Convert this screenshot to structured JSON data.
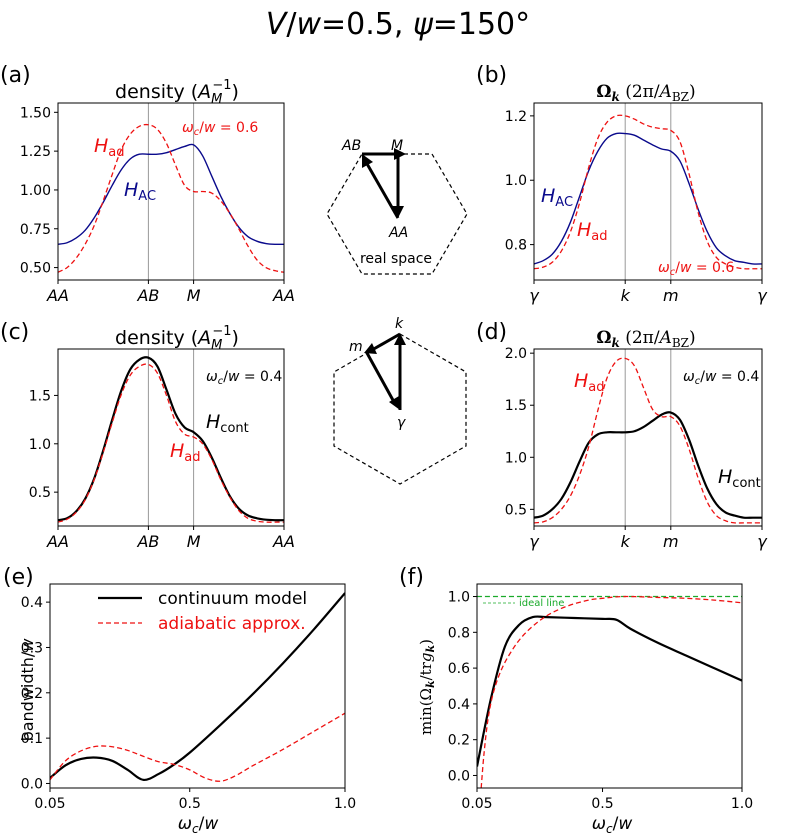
{
  "figure": {
    "title": "V/w=0.5, ψ=150°",
    "title_parts": [
      "V",
      "/",
      "w",
      "=0.5, ",
      "ψ",
      "=150°"
    ]
  },
  "colors": {
    "black": "#000000",
    "red": "#ee1111",
    "navy": "#0a0a8c",
    "green": "#1aaa2a",
    "grid": "#999999"
  },
  "schematics": {
    "real_space": {
      "labels": [
        "AB",
        "M",
        "AA"
      ],
      "caption": "real space"
    },
    "k_space": {
      "labels": [
        "k",
        "m",
        "γ"
      ]
    }
  },
  "chart_data": [
    {
      "id": "a",
      "panel_label": "(a)",
      "type": "line",
      "title": "density (A_M^-1)",
      "title_parts": [
        "density (",
        "A",
        "M",
        "−1",
        ")"
      ],
      "xlabel": "",
      "ylabel": "",
      "x_ticks": [
        "AA",
        "AB",
        "M",
        "AA"
      ],
      "x_tick_positions": [
        0,
        1,
        1.5,
        2.5
      ],
      "vlines": [
        1,
        1.5
      ],
      "xlim": [
        0,
        2.5
      ],
      "ylim": [
        0.42,
        1.56
      ],
      "y_ticks": [
        0.5,
        0.75,
        1.0,
        1.25,
        1.5
      ],
      "y_tick_labels": [
        "0.50",
        "0.75",
        "1.00",
        "1.25",
        "1.50"
      ],
      "annotation": "ωc/w = 0.6",
      "annotation_parts": [
        "ω",
        "c",
        "/",
        "w",
        " = 0.6"
      ],
      "series": [
        {
          "name": "H_AC",
          "label_main": "H",
          "label_sub": "AC",
          "style": "solid",
          "color": "#0a0a8c",
          "x": [
            0,
            0.1,
            0.2,
            0.3,
            0.4,
            0.5,
            0.6,
            0.7,
            0.8,
            0.9,
            1.0,
            1.1,
            1.2,
            1.3,
            1.4,
            1.5,
            1.6,
            1.7,
            1.8,
            1.9,
            2.0,
            2.1,
            2.2,
            2.3,
            2.4,
            2.5
          ],
          "y": [
            0.65,
            0.66,
            0.69,
            0.74,
            0.82,
            0.92,
            1.03,
            1.13,
            1.2,
            1.23,
            1.23,
            1.23,
            1.24,
            1.26,
            1.28,
            1.29,
            1.22,
            1.09,
            0.96,
            0.85,
            0.76,
            0.7,
            0.67,
            0.655,
            0.65,
            0.65
          ]
        },
        {
          "name": "H_ad",
          "label_main": "H",
          "label_sub": "ad",
          "style": "dashed",
          "color": "#ee1111",
          "x": [
            0,
            0.1,
            0.2,
            0.3,
            0.4,
            0.5,
            0.6,
            0.7,
            0.8,
            0.9,
            1.0,
            1.1,
            1.2,
            1.3,
            1.4,
            1.5,
            1.6,
            1.7,
            1.8,
            1.9,
            2.0,
            2.1,
            2.2,
            2.3,
            2.4,
            2.5
          ],
          "y": [
            0.47,
            0.5,
            0.56,
            0.65,
            0.77,
            0.93,
            1.1,
            1.26,
            1.36,
            1.41,
            1.42,
            1.39,
            1.3,
            1.16,
            1.03,
            0.99,
            0.99,
            0.98,
            0.93,
            0.85,
            0.75,
            0.64,
            0.55,
            0.5,
            0.48,
            0.47
          ]
        }
      ]
    },
    {
      "id": "b",
      "panel_label": "(b)",
      "type": "line",
      "title": "Ωk (2π/ABZ)",
      "title_parts": [
        "Ω",
        "k",
        "  (2π/",
        "A",
        "BZ",
        ")"
      ],
      "xlabel": "",
      "ylabel": "",
      "x_ticks": [
        "γ",
        "k",
        "m",
        "γ"
      ],
      "x_tick_positions": [
        0,
        1,
        1.5,
        2.5
      ],
      "vlines": [
        1,
        1.5
      ],
      "xlim": [
        0,
        2.5
      ],
      "ylim": [
        0.69,
        1.24
      ],
      "y_ticks": [
        0.8,
        1.0,
        1.2
      ],
      "y_tick_labels": [
        "0.8",
        "1.0",
        "1.2"
      ],
      "annotation": "ωc/w = 0.6",
      "annotation_parts": [
        "ω",
        "c",
        "/",
        "w",
        " = 0.6"
      ],
      "series": [
        {
          "name": "H_AC",
          "label_main": "H",
          "label_sub": "AC",
          "style": "solid",
          "color": "#0a0a8c",
          "x": [
            0,
            0.1,
            0.2,
            0.3,
            0.4,
            0.5,
            0.6,
            0.7,
            0.8,
            0.9,
            1.0,
            1.1,
            1.2,
            1.3,
            1.4,
            1.5,
            1.6,
            1.7,
            1.8,
            1.9,
            2.0,
            2.1,
            2.2,
            2.3,
            2.4,
            2.5
          ],
          "y": [
            0.74,
            0.75,
            0.77,
            0.81,
            0.87,
            0.95,
            1.03,
            1.09,
            1.13,
            1.145,
            1.145,
            1.14,
            1.125,
            1.11,
            1.097,
            1.09,
            1.06,
            0.99,
            0.91,
            0.84,
            0.79,
            0.765,
            0.75,
            0.745,
            0.74,
            0.74
          ]
        },
        {
          "name": "H_ad",
          "label_main": "H",
          "label_sub": "ad",
          "style": "dashed",
          "color": "#ee1111",
          "x": [
            0,
            0.1,
            0.2,
            0.3,
            0.4,
            0.5,
            0.6,
            0.7,
            0.8,
            0.9,
            1.0,
            1.1,
            1.2,
            1.3,
            1.4,
            1.5,
            1.6,
            1.7,
            1.8,
            1.9,
            2.0,
            2.1,
            2.2,
            2.3,
            2.4,
            2.5
          ],
          "y": [
            0.725,
            0.73,
            0.745,
            0.78,
            0.84,
            0.93,
            1.04,
            1.13,
            1.18,
            1.2,
            1.2,
            1.19,
            1.175,
            1.165,
            1.16,
            1.155,
            1.12,
            1.02,
            0.9,
            0.81,
            0.76,
            0.74,
            0.73,
            0.725,
            0.725,
            0.725
          ]
        }
      ]
    },
    {
      "id": "c",
      "panel_label": "(c)",
      "type": "line",
      "title": "density (A_M^-1)",
      "title_parts": [
        "density (",
        "A",
        "M",
        "−1",
        ")"
      ],
      "xlabel": "",
      "ylabel": "",
      "x_ticks": [
        "AA",
        "AB",
        "M",
        "AA"
      ],
      "x_tick_positions": [
        0,
        1,
        1.5,
        2.5
      ],
      "vlines": [
        1,
        1.5
      ],
      "xlim": [
        0,
        2.5
      ],
      "ylim": [
        0.15,
        1.98
      ],
      "y_ticks": [
        0.5,
        1.0,
        1.5
      ],
      "y_tick_labels": [
        "0.5",
        "1.0",
        "1.5"
      ],
      "annotation": "ωc/w = 0.4",
      "annotation_parts": [
        "ω",
        "c",
        "/",
        "w",
        " = 0.4"
      ],
      "series": [
        {
          "name": "H_cont",
          "label_main": "H",
          "label_sub": "cont",
          "style": "solid",
          "color": "#000000",
          "x": [
            0,
            0.1,
            0.2,
            0.3,
            0.4,
            0.5,
            0.6,
            0.7,
            0.8,
            0.9,
            1.0,
            1.1,
            1.2,
            1.3,
            1.4,
            1.5,
            1.6,
            1.7,
            1.8,
            1.9,
            2.0,
            2.1,
            2.2,
            2.3,
            2.4,
            2.5
          ],
          "y": [
            0.21,
            0.23,
            0.3,
            0.43,
            0.64,
            0.93,
            1.25,
            1.55,
            1.77,
            1.87,
            1.89,
            1.8,
            1.56,
            1.31,
            1.17,
            1.12,
            1.03,
            0.86,
            0.65,
            0.46,
            0.33,
            0.26,
            0.23,
            0.215,
            0.21,
            0.21
          ]
        },
        {
          "name": "H_ad",
          "label_main": "H",
          "label_sub": "ad",
          "style": "dashed",
          "color": "#ee1111",
          "x": [
            0,
            0.1,
            0.2,
            0.3,
            0.4,
            0.5,
            0.6,
            0.7,
            0.8,
            0.9,
            1.0,
            1.1,
            1.2,
            1.3,
            1.4,
            1.5,
            1.6,
            1.7,
            1.8,
            1.9,
            2.0,
            2.1,
            2.2,
            2.3,
            2.4,
            2.5
          ],
          "y": [
            0.19,
            0.22,
            0.29,
            0.42,
            0.63,
            0.91,
            1.22,
            1.51,
            1.71,
            1.8,
            1.82,
            1.73,
            1.5,
            1.23,
            1.1,
            1.07,
            1.0,
            0.84,
            0.63,
            0.45,
            0.31,
            0.23,
            0.2,
            0.19,
            0.19,
            0.19
          ]
        }
      ]
    },
    {
      "id": "d",
      "panel_label": "(d)",
      "type": "line",
      "title": "Ωk (2π/ABZ)",
      "title_parts": [
        "Ω",
        "k",
        "  (2π/",
        "A",
        "BZ",
        ")"
      ],
      "xlabel": "",
      "ylabel": "",
      "x_ticks": [
        "γ",
        "k",
        "m",
        "γ"
      ],
      "x_tick_positions": [
        0,
        1,
        1.5,
        2.5
      ],
      "vlines": [
        1,
        1.5
      ],
      "xlim": [
        0,
        2.5
      ],
      "ylim": [
        0.34,
        2.04
      ],
      "y_ticks": [
        0.5,
        1.0,
        1.5,
        2.0
      ],
      "y_tick_labels": [
        "0.5",
        "1.0",
        "1.5",
        "2.0"
      ],
      "annotation": "ωc/w = 0.4",
      "annotation_parts": [
        "ω",
        "c",
        "/",
        "w",
        " = 0.4"
      ],
      "series": [
        {
          "name": "H_cont",
          "label_main": "H",
          "label_sub": "cont",
          "style": "solid",
          "color": "#000000",
          "x": [
            0,
            0.1,
            0.2,
            0.3,
            0.4,
            0.5,
            0.6,
            0.7,
            0.8,
            0.9,
            1.0,
            1.1,
            1.2,
            1.3,
            1.4,
            1.5,
            1.6,
            1.7,
            1.8,
            1.9,
            2.0,
            2.1,
            2.2,
            2.3,
            2.4,
            2.5
          ],
          "y": [
            0.42,
            0.44,
            0.5,
            0.6,
            0.76,
            0.96,
            1.14,
            1.22,
            1.24,
            1.24,
            1.24,
            1.25,
            1.29,
            1.35,
            1.41,
            1.43,
            1.36,
            1.17,
            0.92,
            0.7,
            0.55,
            0.47,
            0.44,
            0.42,
            0.42,
            0.42
          ]
        },
        {
          "name": "H_ad",
          "label_main": "H",
          "label_sub": "ad",
          "style": "dashed",
          "color": "#ee1111",
          "x": [
            0,
            0.1,
            0.2,
            0.3,
            0.4,
            0.5,
            0.6,
            0.7,
            0.8,
            0.9,
            1.0,
            1.1,
            1.2,
            1.3,
            1.4,
            1.5,
            1.6,
            1.7,
            1.8,
            1.9,
            2.0,
            2.1,
            2.2,
            2.3,
            2.4,
            2.5
          ],
          "y": [
            0.37,
            0.38,
            0.42,
            0.5,
            0.63,
            0.83,
            1.1,
            1.45,
            1.76,
            1.92,
            1.95,
            1.88,
            1.67,
            1.46,
            1.39,
            1.39,
            1.3,
            1.08,
            0.8,
            0.57,
            0.44,
            0.39,
            0.37,
            0.37,
            0.37,
            0.37
          ]
        }
      ]
    },
    {
      "id": "e",
      "panel_label": "(e)",
      "type": "line",
      "title": "",
      "xlabel": "ωc/w",
      "xlabel_parts": [
        "ω",
        "c",
        "/",
        "w"
      ],
      "ylabel": "bandwidth/w",
      "ylabel_parts": [
        "bandwidth/",
        "w"
      ],
      "xlim": [
        0.05,
        1.0
      ],
      "ylim": [
        -0.01,
        0.44
      ],
      "x_ticks": [
        0.05,
        0.5,
        1.0
      ],
      "x_tick_labels": [
        "0.05",
        "0.5",
        "1.0"
      ],
      "y_ticks": [
        0.0,
        0.1,
        0.2,
        0.3,
        0.4
      ],
      "y_tick_labels": [
        "0.0",
        "0.1",
        "0.2",
        "0.3",
        "0.4"
      ],
      "legend": [
        "continuum model",
        "adiabatic approx."
      ],
      "legend_position": "top-left",
      "series": [
        {
          "name": "continuum model",
          "style": "solid",
          "color": "#000000",
          "x": [
            0.05,
            0.1,
            0.15,
            0.2,
            0.25,
            0.3,
            0.35,
            0.4,
            0.45,
            0.5,
            0.6,
            0.7,
            0.8,
            0.9,
            1.0
          ],
          "y": [
            0.012,
            0.04,
            0.054,
            0.057,
            0.05,
            0.03,
            0.008,
            0.021,
            0.042,
            0.068,
            0.13,
            0.195,
            0.265,
            0.34,
            0.42
          ]
        },
        {
          "name": "adiabatic approx.",
          "style": "dashed",
          "color": "#ee1111",
          "x": [
            0.05,
            0.1,
            0.15,
            0.2,
            0.25,
            0.3,
            0.35,
            0.4,
            0.45,
            0.5,
            0.55,
            0.6,
            0.65,
            0.7,
            0.8,
            0.9,
            1.0
          ],
          "y": [
            0.008,
            0.05,
            0.072,
            0.082,
            0.081,
            0.073,
            0.06,
            0.048,
            0.042,
            0.03,
            0.012,
            0.005,
            0.018,
            0.038,
            0.075,
            0.115,
            0.155
          ]
        }
      ]
    },
    {
      "id": "f",
      "panel_label": "(f)",
      "type": "line",
      "title": "",
      "xlabel": "ωc/w",
      "xlabel_parts": [
        "ω",
        "c",
        "/",
        "w"
      ],
      "ylabel": "min(Ωk/trgk)",
      "ylabel_parts": [
        "min(Ω",
        "k",
        "/tr",
        "g",
        "k",
        ")"
      ],
      "xlim": [
        0.05,
        1.0
      ],
      "ylim": [
        -0.07,
        1.07
      ],
      "x_ticks": [
        0.05,
        0.5,
        1.0
      ],
      "x_tick_labels": [
        "0.05",
        "0.5",
        "1.0"
      ],
      "y_ticks": [
        0.0,
        0.2,
        0.4,
        0.6,
        0.8,
        1.0
      ],
      "y_tick_labels": [
        "0.0",
        "0.2",
        "0.4",
        "0.6",
        "0.8",
        "1.0"
      ],
      "legend": [
        "ideal line"
      ],
      "legend_position": "top-left",
      "series": [
        {
          "name": "ideal line",
          "style": "dashed",
          "color": "#1aaa2a",
          "x": [
            0.05,
            1.0
          ],
          "y": [
            1.0,
            1.0
          ]
        },
        {
          "name": "continuum model",
          "style": "solid",
          "color": "#000000",
          "x": [
            0.05,
            0.1,
            0.15,
            0.2,
            0.25,
            0.3,
            0.4,
            0.5,
            0.55,
            0.6,
            0.7,
            0.8,
            0.9,
            1.0
          ],
          "y": [
            0.05,
            0.43,
            0.72,
            0.84,
            0.885,
            0.885,
            0.88,
            0.875,
            0.87,
            0.82,
            0.74,
            0.67,
            0.6,
            0.53
          ]
        },
        {
          "name": "adiabatic approx.",
          "style": "dashed",
          "color": "#ee1111",
          "x": [
            0.065,
            0.075,
            0.09,
            0.11,
            0.14,
            0.18,
            0.22,
            0.27,
            0.32,
            0.38,
            0.45,
            0.5,
            0.55,
            0.6,
            0.7,
            0.8,
            0.9,
            1.0
          ],
          "y": [
            -0.07,
            0.12,
            0.32,
            0.47,
            0.6,
            0.71,
            0.79,
            0.86,
            0.91,
            0.95,
            0.98,
            0.99,
            0.998,
            1.0,
            0.995,
            0.99,
            0.98,
            0.965
          ]
        }
      ]
    }
  ]
}
